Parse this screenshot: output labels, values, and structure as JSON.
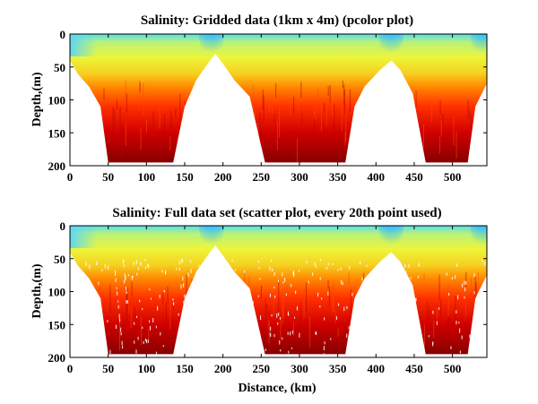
{
  "colors": {
    "surface_fresh": "#1e90ff",
    "mid": "#e6f53c",
    "orange": "#ff7a00",
    "deep": "#8b0000",
    "background": "#ffffff"
  },
  "chart_data": [
    {
      "type": "heatmap",
      "title": "Salinity: Gridded data (1km x 4m) (pcolor plot)",
      "xlabel": "",
      "ylabel": "Depth,(m)",
      "xlim": [
        0,
        545
      ],
      "ylim": [
        200,
        0
      ],
      "y_inverted": true,
      "xticks": [
        "0",
        "50",
        "100",
        "150",
        "200",
        "250",
        "300",
        "350",
        "400",
        "450",
        "500"
      ],
      "yticks": [
        "0",
        "50",
        "100",
        "150",
        "200"
      ],
      "colorscale": [
        "cyan-blue at surface",
        "yellow-green mid depths",
        "orange-red",
        "dark red at depth"
      ],
      "fresh_water_zones_km": [
        185,
        420,
        540
      ],
      "bottom_profile": [
        {
          "x": 0,
          "depth": 40
        },
        {
          "x": 10,
          "depth": 60
        },
        {
          "x": 25,
          "depth": 80
        },
        {
          "x": 40,
          "depth": 110
        },
        {
          "x": 50,
          "depth": 195
        },
        {
          "x": 135,
          "depth": 195
        },
        {
          "x": 150,
          "depth": 110
        },
        {
          "x": 165,
          "depth": 70
        },
        {
          "x": 180,
          "depth": 45
        },
        {
          "x": 190,
          "depth": 30
        },
        {
          "x": 200,
          "depth": 45
        },
        {
          "x": 215,
          "depth": 70
        },
        {
          "x": 235,
          "depth": 95
        },
        {
          "x": 255,
          "depth": 195
        },
        {
          "x": 360,
          "depth": 195
        },
        {
          "x": 372,
          "depth": 110
        },
        {
          "x": 385,
          "depth": 80
        },
        {
          "x": 405,
          "depth": 55
        },
        {
          "x": 420,
          "depth": 40
        },
        {
          "x": 432,
          "depth": 55
        },
        {
          "x": 448,
          "depth": 90
        },
        {
          "x": 465,
          "depth": 195
        },
        {
          "x": 520,
          "depth": 195
        },
        {
          "x": 530,
          "depth": 110
        },
        {
          "x": 545,
          "depth": 75
        }
      ]
    },
    {
      "type": "scatter",
      "title": "Salinity: Full data set (scatter plot, every 20th point used)",
      "xlabel": "Distance, (km)",
      "ylabel": "Depth,(m)",
      "xlim": [
        0,
        545
      ],
      "ylim": [
        200,
        0
      ],
      "y_inverted": true,
      "xticks": [
        "0",
        "50",
        "100",
        "150",
        "200",
        "250",
        "300",
        "350",
        "400",
        "450",
        "500"
      ],
      "yticks": [
        "0",
        "50",
        "100",
        "150",
        "200"
      ],
      "colorscale": [
        "cyan-blue at surface",
        "yellow-green mid depths",
        "orange-red",
        "dark red at depth"
      ],
      "fresh_water_zones_km": [
        185,
        420,
        540
      ],
      "bottom_profile": [
        {
          "x": 0,
          "depth": 40
        },
        {
          "x": 10,
          "depth": 60
        },
        {
          "x": 25,
          "depth": 80
        },
        {
          "x": 40,
          "depth": 110
        },
        {
          "x": 50,
          "depth": 195
        },
        {
          "x": 135,
          "depth": 195
        },
        {
          "x": 150,
          "depth": 110
        },
        {
          "x": 165,
          "depth": 70
        },
        {
          "x": 180,
          "depth": 45
        },
        {
          "x": 190,
          "depth": 30
        },
        {
          "x": 200,
          "depth": 45
        },
        {
          "x": 215,
          "depth": 70
        },
        {
          "x": 235,
          "depth": 95
        },
        {
          "x": 255,
          "depth": 195
        },
        {
          "x": 360,
          "depth": 195
        },
        {
          "x": 372,
          "depth": 110
        },
        {
          "x": 385,
          "depth": 80
        },
        {
          "x": 405,
          "depth": 55
        },
        {
          "x": 420,
          "depth": 40
        },
        {
          "x": 432,
          "depth": 55
        },
        {
          "x": 448,
          "depth": 90
        },
        {
          "x": 465,
          "depth": 195
        },
        {
          "x": 520,
          "depth": 195
        },
        {
          "x": 530,
          "depth": 110
        },
        {
          "x": 545,
          "depth": 75
        }
      ]
    }
  ]
}
